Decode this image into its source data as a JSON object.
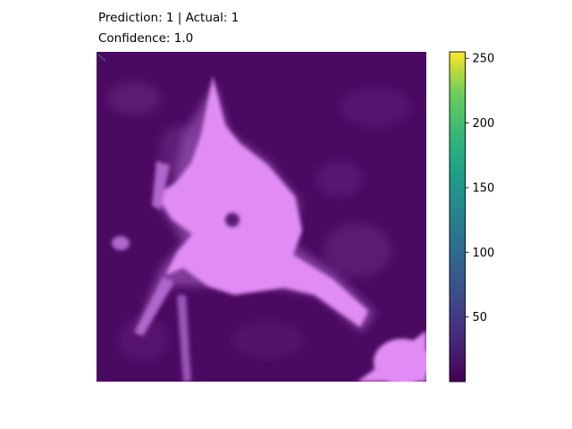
{
  "chart_data": {
    "type": "heatmap",
    "title_lines": [
      "Prediction: 1 | Actual: 1",
      "Confidence: 1.0"
    ],
    "prediction": 1,
    "actual": 1,
    "confidence": 1.0,
    "image_axes_visible": false,
    "overlay_color": "#e08cf4",
    "background_color": "#4b0a62",
    "colorbar": {
      "colormap": "viridis",
      "range": [
        0,
        255
      ],
      "ticks": [
        "50",
        "100",
        "150",
        "200",
        "250"
      ],
      "tick_values": [
        50,
        100,
        150,
        200,
        250
      ],
      "colors": [
        "#440154",
        "#3b528b",
        "#21918c",
        "#5ec962",
        "#fde725"
      ]
    }
  }
}
